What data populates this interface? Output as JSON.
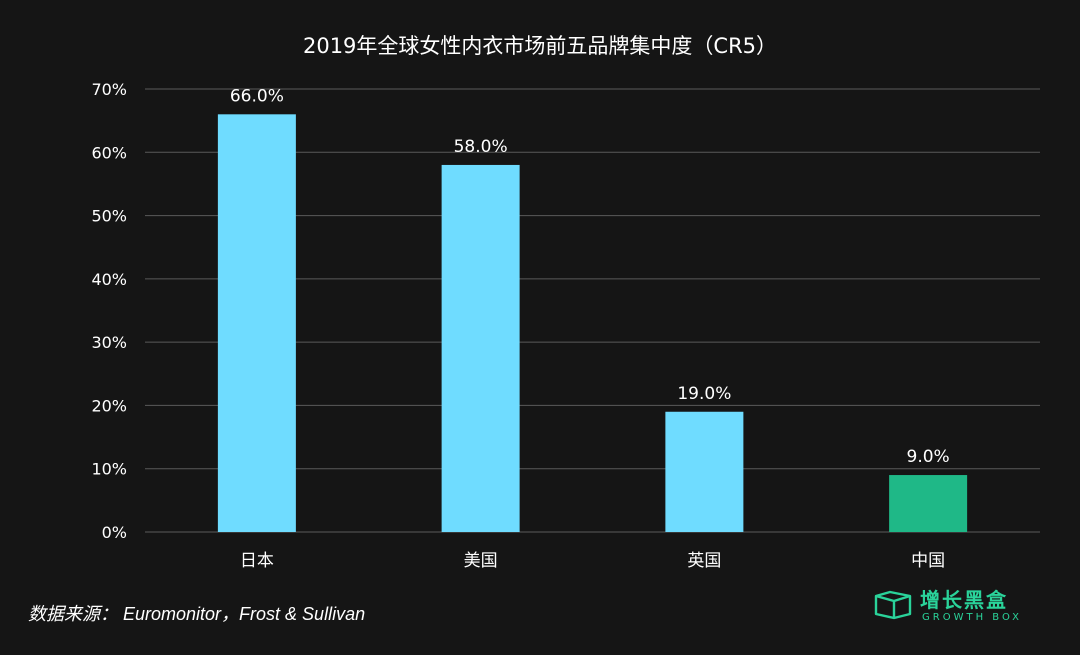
{
  "chart_data": {
    "type": "bar",
    "title": "2019年全球女性内衣市场前五品牌集中度（CR5）",
    "categories": [
      "日本",
      "美国",
      "英国",
      "中国"
    ],
    "values": [
      66.0,
      58.0,
      19.0,
      9.0
    ],
    "value_labels": [
      "66.0%",
      "58.0%",
      "19.0%",
      "9.0%"
    ],
    "bar_colors": [
      "#6fdcff",
      "#6fdcff",
      "#6fdcff",
      "#1fb887"
    ],
    "ylim": [
      0,
      70
    ],
    "yticks": [
      0,
      10,
      20,
      30,
      40,
      50,
      60,
      70
    ],
    "ytick_labels": [
      "0%",
      "10%",
      "20%",
      "30%",
      "40%",
      "50%",
      "60%",
      "70%"
    ],
    "grid": true,
    "xlabel": "",
    "ylabel": ""
  },
  "source": "数据来源： Euromonitor，Frost & Sullivan",
  "brand": {
    "name": "增长黑盒",
    "sub": "GROWTH BOX",
    "icon": "growth-box-logo-icon",
    "color": "#2ad39a"
  },
  "colors": {
    "background": "#151515",
    "grid": "#5a5a5a"
  }
}
